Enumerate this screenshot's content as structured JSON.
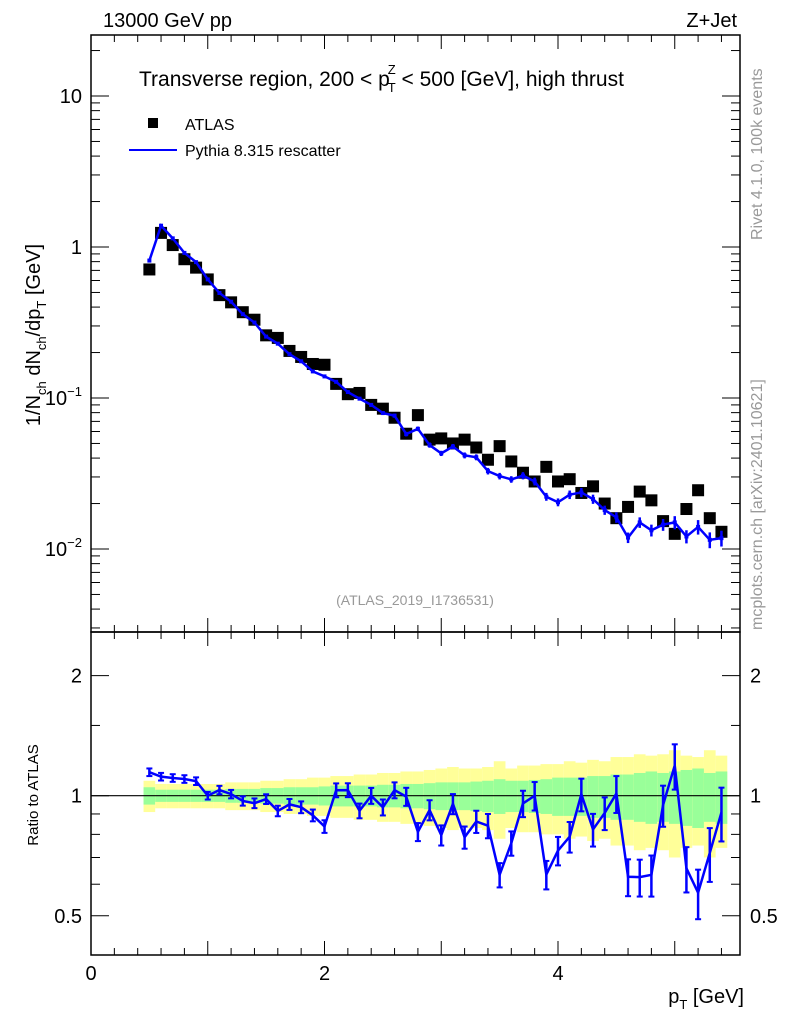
{
  "header": {
    "left": "13000 GeV pp",
    "right": "Z+Jet"
  },
  "title": {
    "pre": "Transverse region, 200 < p",
    "sub": "T",
    "sup": "Z",
    "post": " < 500 [GeV], high thrust"
  },
  "legend": {
    "data_label": "ATLAS",
    "mc_label": "Pythia 8.315 rescatter"
  },
  "watermark": "(ATLAS_2019_I1736531)",
  "side": {
    "rivet": "Rivet 4.1.0,  100k events",
    "mcplots": "mcplots.cern.ch [arXiv:2401.10621]"
  },
  "colors": {
    "mc": "#0000ff",
    "data": "#000000",
    "stat_band": "#99ff99",
    "total_band": "#ffff99"
  },
  "chart_data": {
    "type": "line",
    "xlabel": "p_T [GeV]",
    "ylabel": "1/N_ch dN_ch/dp_T [GeV]",
    "ratio_ylabel": "Ratio to ATLAS",
    "xlim": [
      0,
      5.55
    ],
    "ylim": [
      0.0028,
      25
    ],
    "ratio_ylim": [
      0.4,
      2.56
    ],
    "yscale": "log",
    "ratio_yscale": "log",
    "legend_position": "top-left",
    "x_ticks": [
      "0",
      "2",
      "4"
    ],
    "y_ticks": [
      {
        "base": "10",
        "exp": "−2"
      },
      {
        "base": "10",
        "exp": "−1"
      },
      {
        "base": "1",
        "exp": ""
      },
      {
        "base": "10",
        "exp": ""
      }
    ],
    "ratio_ticks": [
      "0.5",
      "1",
      "2"
    ],
    "x": [
      0.5,
      0.6,
      0.7,
      0.8,
      0.9,
      1.0,
      1.1,
      1.2,
      1.3,
      1.4,
      1.5,
      1.6,
      1.7,
      1.8,
      1.9,
      2.0,
      2.1,
      2.2,
      2.3,
      2.4,
      2.5,
      2.6,
      2.7,
      2.8,
      2.9,
      3.0,
      3.1,
      3.2,
      3.3,
      3.4,
      3.5,
      3.6,
      3.7,
      3.8,
      3.9,
      4.0,
      4.1,
      4.2,
      4.3,
      4.4,
      4.5,
      4.6,
      4.7,
      4.8,
      4.9,
      5.0,
      5.1,
      5.2,
      5.3,
      5.4
    ],
    "series": [
      {
        "name": "ATLAS",
        "values": [
          0.71,
          1.24,
          1.03,
          0.83,
          0.73,
          0.61,
          0.48,
          0.43,
          0.37,
          0.33,
          0.26,
          0.25,
          0.205,
          0.187,
          0.168,
          0.166,
          0.124,
          0.106,
          0.108,
          0.09,
          0.085,
          0.074,
          0.058,
          0.077,
          0.053,
          0.054,
          0.05,
          0.053,
          0.047,
          0.039,
          0.048,
          0.038,
          0.032,
          0.028,
          0.035,
          0.028,
          0.029,
          0.0235,
          0.026,
          0.02,
          0.016,
          0.019,
          0.024,
          0.021,
          0.0153,
          0.0126,
          0.0184,
          0.0245,
          0.016,
          0.013
        ],
        "stat_rel_err": [
          0.05,
          0.035,
          0.035,
          0.035,
          0.035,
          0.035,
          0.035,
          0.04,
          0.04,
          0.04,
          0.045,
          0.045,
          0.05,
          0.05,
          0.05,
          0.055,
          0.06,
          0.06,
          0.06,
          0.06,
          0.065,
          0.065,
          0.07,
          0.07,
          0.075,
          0.08,
          0.08,
          0.08,
          0.085,
          0.09,
          0.1,
          0.09,
          0.09,
          0.095,
          0.1,
          0.11,
          0.11,
          0.11,
          0.12,
          0.12,
          0.13,
          0.13,
          0.14,
          0.15,
          0.14,
          0.15,
          0.16,
          0.17,
          0.14,
          0.15
        ],
        "total_rel_err": [
          0.09,
          0.07,
          0.07,
          0.07,
          0.07,
          0.07,
          0.07,
          0.08,
          0.08,
          0.08,
          0.09,
          0.09,
          0.1,
          0.1,
          0.11,
          0.11,
          0.12,
          0.12,
          0.13,
          0.13,
          0.14,
          0.14,
          0.15,
          0.15,
          0.16,
          0.17,
          0.18,
          0.17,
          0.17,
          0.18,
          0.22,
          0.17,
          0.19,
          0.19,
          0.2,
          0.2,
          0.22,
          0.21,
          0.23,
          0.22,
          0.25,
          0.25,
          0.27,
          0.26,
          0.27,
          0.3,
          0.26,
          0.25,
          0.3,
          0.26
        ]
      },
      {
        "name": "Pythia 8.315 rescatter",
        "values": [
          0.813,
          1.384,
          1.141,
          0.914,
          0.794,
          0.61,
          0.496,
          0.434,
          0.359,
          0.316,
          0.255,
          0.229,
          0.195,
          0.175,
          0.15,
          0.139,
          0.128,
          0.1095,
          0.099,
          0.09,
          0.0795,
          0.0764,
          0.0577,
          0.0625,
          0.0488,
          0.043,
          0.0477,
          0.0417,
          0.0405,
          0.0328,
          0.0304,
          0.0289,
          0.0306,
          0.028,
          0.0222,
          0.0204,
          0.0229,
          0.0237,
          0.0214,
          0.0181,
          0.0162,
          0.0119,
          0.015,
          0.0133,
          0.0145,
          0.015,
          0.0121,
          0.014,
          0.0115,
          0.0118
        ],
        "rel_err": [
          0.01,
          0.01,
          0.01,
          0.01,
          0.01,
          0.01,
          0.012,
          0.012,
          0.014,
          0.015,
          0.015,
          0.017,
          0.018,
          0.02,
          0.02,
          0.022,
          0.025,
          0.025,
          0.027,
          0.03,
          0.03,
          0.03,
          0.035,
          0.035,
          0.04,
          0.04,
          0.04,
          0.045,
          0.045,
          0.05,
          0.05,
          0.05,
          0.055,
          0.06,
          0.06,
          0.06,
          0.065,
          0.07,
          0.07,
          0.07,
          0.08,
          0.08,
          0.08,
          0.09,
          0.09,
          0.1,
          0.1,
          0.11,
          0.12,
          0.12
        ]
      }
    ]
  }
}
